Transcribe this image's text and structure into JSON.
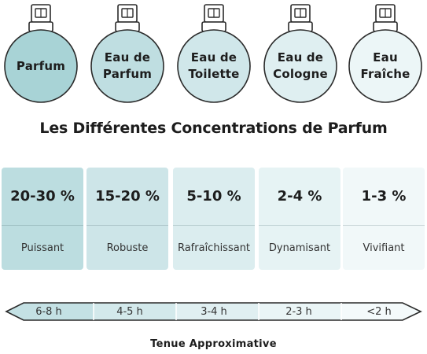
{
  "bottles": [
    {
      "label": "Parfum",
      "fill": "#a8d3d6"
    },
    {
      "label": "Eau de\nParfum",
      "fill": "#bfdee1"
    },
    {
      "label": "Eau de\nToilette",
      "fill": "#d0e7ea"
    },
    {
      "label": "Eau de\nCologne",
      "fill": "#dfeff1"
    },
    {
      "label": "Eau\nFraîche",
      "fill": "#ecf6f7"
    }
  ],
  "title": "Les Différentes Concentrations de Parfum",
  "concentrations": [
    {
      "value": "20-30 %",
      "desc": "Puissant",
      "fill": "#bcdde0"
    },
    {
      "value": "15-20 %",
      "desc": "Robuste",
      "fill": "#cde5e8"
    },
    {
      "value": "5-10 %",
      "desc": "Rafraîchissant",
      "fill": "#dbedef"
    },
    {
      "value": "2-4 %",
      "desc": "Dynamisant",
      "fill": "#e6f3f4"
    },
    {
      "value": "1-3 %",
      "desc": "Vivifiant",
      "fill": "#f1f8f9"
    }
  ],
  "durations": [
    {
      "label": "6-8 h",
      "fill": "#c4e1e4"
    },
    {
      "label": "4-5 h",
      "fill": "#d3e9eb"
    },
    {
      "label": "3-4 h",
      "fill": "#e0eff1"
    },
    {
      "label": "2-3 h",
      "fill": "#eaf5f6"
    },
    {
      "label": "<2 h",
      "fill": "#f4fafb"
    }
  ],
  "footer": "Tenue Approximative"
}
